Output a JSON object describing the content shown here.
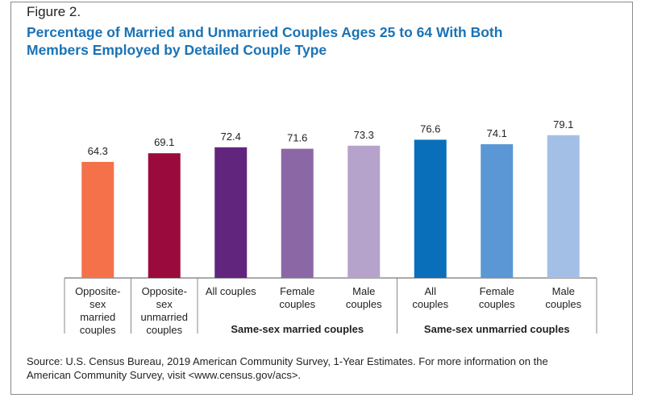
{
  "figure_label": "Figure 2.",
  "title_lines": [
    "Percentage of Married and Unmarried Couples Ages 25 to 64 With Both",
    "Members Employed by Detailed Couple Type"
  ],
  "source_lines": [
    "Source: U.S. Census Bureau, 2019 American Community Survey, 1-Year Estimates. For more information on the",
    "American Community Survey, visit <www.census.gov/acs>."
  ],
  "chart_data": {
    "type": "bar",
    "title": "Percentage of Married and Unmarried Couples Ages 25 to 64 With Both Members Employed by Detailed Couple Type",
    "categories": [
      [
        "Opposite-",
        "sex",
        "married",
        "couples"
      ],
      [
        "Opposite-",
        "sex",
        "unmarried",
        "couples"
      ],
      [
        "All couples"
      ],
      [
        "Female",
        "couples"
      ],
      [
        "Male",
        "couples"
      ],
      [
        "All",
        "couples"
      ],
      [
        "Female",
        "couples"
      ],
      [
        "Male",
        "couples"
      ]
    ],
    "values": [
      64.3,
      69.1,
      72.4,
      71.6,
      73.3,
      76.6,
      74.1,
      79.1
    ],
    "value_labels": [
      "64.3",
      "69.1",
      "72.4",
      "71.6",
      "73.3",
      "76.6",
      "74.1",
      "79.1"
    ],
    "colors": [
      "#f4714a",
      "#9b0a3c",
      "#61257e",
      "#8b68a5",
      "#b5a3cb",
      "#0a6fba",
      "#5b97d4",
      "#a3bfe5"
    ],
    "groups": [
      {
        "label": "Same-sex married couples",
        "from": 2,
        "to": 4
      },
      {
        "label": "Same-sex unmarried couples",
        "from": 5,
        "to": 7
      }
    ],
    "xlabel": "",
    "ylabel": "",
    "grid": false,
    "legend": "none"
  }
}
